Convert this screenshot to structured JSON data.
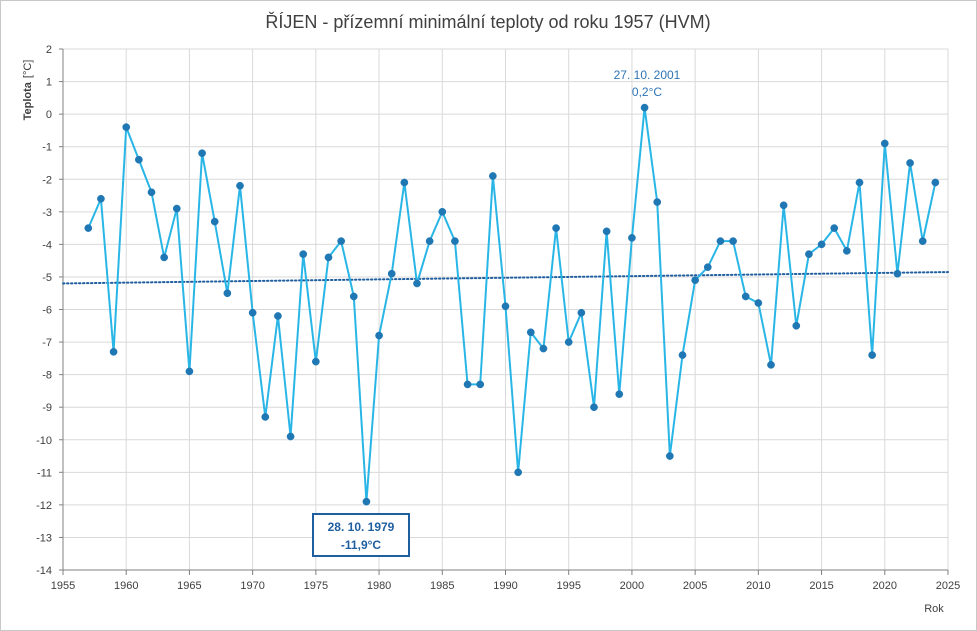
{
  "chart_data": {
    "type": "line",
    "title": "ŘÍJEN - přízemní minimální teploty od roku 1957 (HVM)",
    "ylabel_name": "Teplota",
    "ylabel_unit": "[°C]",
    "xlabel": "Rok",
    "xlim": [
      1955,
      2025
    ],
    "ylim": [
      -14,
      2
    ],
    "x_ticks": [
      "1955",
      "1960",
      "1965",
      "1970",
      "1975",
      "1980",
      "1985",
      "1990",
      "1995",
      "2000",
      "2005",
      "2010",
      "2015",
      "2020",
      "2025"
    ],
    "y_ticks": [
      "2",
      "1",
      "0",
      "-1",
      "-2",
      "-3",
      "-4",
      "-5",
      "-6",
      "-7",
      "-8",
      "-9",
      "-10",
      "-11",
      "-12",
      "-13",
      "-14"
    ],
    "grid": true,
    "legend": "none",
    "series": [
      {
        "color": "#29b6e6",
        "marker_color": "#1f77b4",
        "x": [
          1957,
          1958,
          1959,
          1960,
          1961,
          1962,
          1963,
          1964,
          1965,
          1966,
          1967,
          1968,
          1969,
          1970,
          1971,
          1972,
          1973,
          1974,
          1975,
          1976,
          1977,
          1978,
          1979,
          1980,
          1981,
          1982,
          1983,
          1984,
          1985,
          1986,
          1987,
          1988,
          1989,
          1990,
          1991,
          1992,
          1993,
          1994,
          1995,
          1996,
          1997,
          1998,
          1999,
          2000,
          2001,
          2002,
          2003,
          2004,
          2005,
          2006,
          2007,
          2008,
          2009,
          2010,
          2011,
          2012,
          2013,
          2014,
          2015,
          2016,
          2017,
          2018,
          2019,
          2020,
          2021,
          2022,
          2023,
          2024
        ],
        "values": [
          -3.5,
          -2.6,
          -7.3,
          -0.4,
          -1.4,
          -2.4,
          -4.4,
          -2.9,
          -7.9,
          -1.2,
          -3.3,
          -5.5,
          -2.2,
          -6.1,
          -9.3,
          -6.2,
          -9.9,
          -4.3,
          -7.6,
          -4.4,
          -3.9,
          -5.6,
          -11.9,
          -6.8,
          -4.9,
          -2.1,
          -5.2,
          -3.9,
          -3.0,
          -3.9,
          -8.3,
          -8.3,
          -1.9,
          -5.9,
          -11.0,
          -6.7,
          -7.2,
          -3.5,
          -7.0,
          -6.1,
          -9.0,
          -3.6,
          -8.6,
          -3.8,
          0.2,
          -2.7,
          -10.5,
          -7.4,
          -5.1,
          -4.7,
          -3.9,
          -3.9,
          -5.6,
          -5.8,
          -7.7,
          -2.8,
          -6.5,
          -4.3,
          -4.0,
          -3.5,
          -4.2,
          -2.1,
          -7.4,
          -0.9,
          -4.9,
          -1.5,
          -3.9,
          -2.1
        ]
      }
    ],
    "trendline": {
      "style": "dotted",
      "color": "#1f5fa0",
      "x": [
        1955,
        2025
      ],
      "y": [
        -5.2,
        -4.85
      ]
    },
    "annotations": [
      {
        "line1": "27. 10. 2001",
        "line2": "0,2°C",
        "boxed": false
      },
      {
        "line1": "28. 10. 1979",
        "line2": "-11,9°C",
        "boxed": true
      }
    ]
  }
}
